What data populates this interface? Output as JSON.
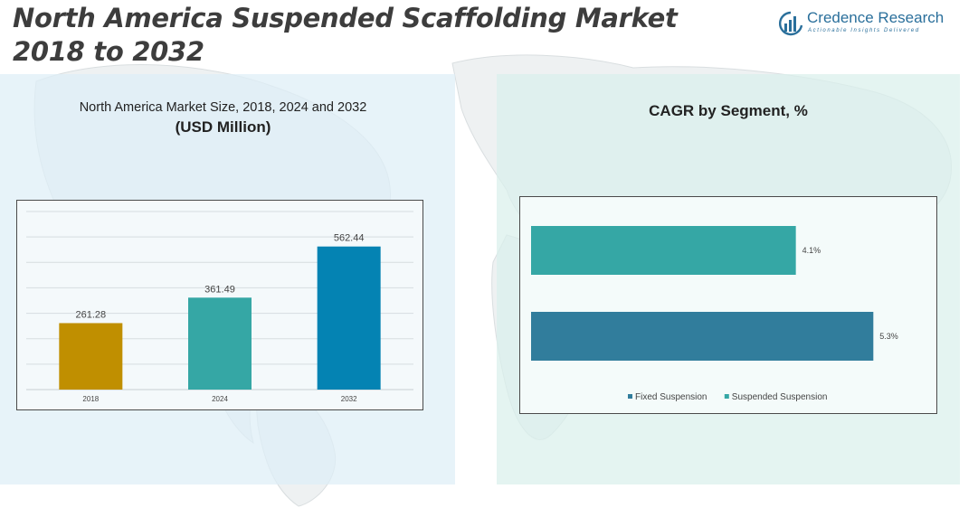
{
  "page": {
    "title_line1": "North America Suspended Scaffolding Market",
    "title_line2": "2018 to 2032"
  },
  "logo": {
    "name": "Credence Research",
    "tagline": "Actionable Insights Delivered",
    "icon": "bar-chart-globe-icon",
    "color": "#2a6f9b"
  },
  "left_panel": {
    "subtitle": "North America Market Size, 2018, 2024 and 2032",
    "unit": "(USD Million)"
  },
  "right_panel": {
    "title": "CAGR by Segment, %"
  },
  "chart_data": [
    {
      "type": "bar",
      "title": "North America Market Size, 2018, 2024 and 2032",
      "ylabel": "(USD Million)",
      "categories": [
        "2018",
        "2024",
        "2032"
      ],
      "values": [
        261.28,
        361.49,
        562.44
      ],
      "value_labels": [
        "261.28",
        "361.49",
        "562.44"
      ],
      "colors": [
        "#c08f00",
        "#35a7a5",
        "#0483b3"
      ],
      "ylim": [
        0,
        700
      ],
      "grid": true,
      "legend": "none"
    },
    {
      "type": "bar",
      "orientation": "horizontal",
      "title": "CAGR by Segment, %",
      "series": [
        {
          "name": "Suspended Suspension",
          "value": 4.1,
          "label": "4.1%",
          "color": "#35a7a5"
        },
        {
          "name": "Fixed Suspension",
          "value": 5.3,
          "label": "5.3%",
          "color": "#317d9c"
        }
      ],
      "legend_order": [
        "Fixed Suspension",
        "Suspended Suspension"
      ],
      "xlim": [
        0,
        5.8
      ],
      "grid": false,
      "legend": "bottom"
    }
  ]
}
